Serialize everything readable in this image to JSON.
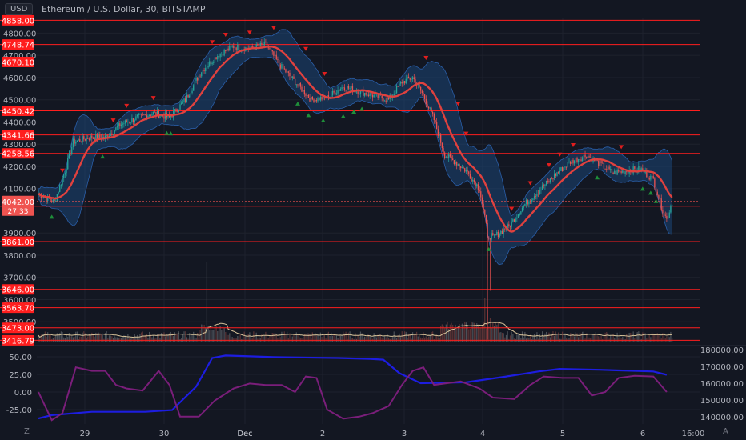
{
  "header": {
    "currency": "USD",
    "title": "Ethereum / U.S. Dollar, 30, BITSTAMP"
  },
  "corners": {
    "left": "Z",
    "right": "A"
  },
  "colors": {
    "background": "#131722",
    "grid": "#1e222d",
    "up": "#26a69a",
    "down": "#ef5350",
    "level_line": "#ff1e1e",
    "basis": "#e0413e",
    "band_fill": "#1d4f8a",
    "volume_ma": "#d9c49a",
    "osc_purple": "#7a1e7a",
    "osc_blue": "#1d1de0",
    "up_marker": "#1f8f3a",
    "down_marker": "#e01e1e"
  },
  "chart_data": {
    "type": "candlestick",
    "symbol": "ETH/USD",
    "interval": "30",
    "exchange": "BITSTAMP",
    "x_ticks": [
      "29",
      "30",
      "Dec",
      "2",
      "3",
      "4",
      "5",
      "6",
      "16:00"
    ],
    "y_ticks": [
      4800,
      4700,
      4600,
      4500,
      4400,
      4300,
      4200,
      4100,
      3900,
      3800,
      3700,
      3600,
      3500
    ],
    "y_range": [
      3400,
      4870
    ],
    "price_levels": [
      4858.0,
      4748.74,
      4670.1,
      4450.42,
      4341.66,
      4258.56,
      4020.4,
      3861.0,
      3646.0,
      3563.7,
      3473.0,
      3416.79
    ],
    "last_price": 4042.0,
    "last_price_countdown": "27:33",
    "close_path": [
      [
        0,
        4075
      ],
      [
        12,
        4040
      ],
      [
        20,
        4180
      ],
      [
        26,
        4310
      ],
      [
        38,
        4330
      ],
      [
        50,
        4330
      ],
      [
        62,
        4390
      ],
      [
        74,
        4420
      ],
      [
        86,
        4440
      ],
      [
        98,
        4420
      ],
      [
        110,
        4500
      ],
      [
        122,
        4630
      ],
      [
        134,
        4700
      ],
      [
        146,
        4740
      ],
      [
        158,
        4730
      ],
      [
        170,
        4750
      ],
      [
        180,
        4660
      ],
      [
        192,
        4580
      ],
      [
        204,
        4500
      ],
      [
        216,
        4510
      ],
      [
        228,
        4560
      ],
      [
        238,
        4540
      ],
      [
        250,
        4520
      ],
      [
        262,
        4500
      ],
      [
        272,
        4580
      ],
      [
        280,
        4600
      ],
      [
        288,
        4520
      ],
      [
        296,
        4410
      ],
      [
        304,
        4250
      ],
      [
        312,
        4220
      ],
      [
        320,
        4180
      ],
      [
        330,
        4100
      ],
      [
        336,
        3900
      ],
      [
        340,
        3880
      ],
      [
        352,
        3930
      ],
      [
        364,
        4030
      ],
      [
        376,
        4100
      ],
      [
        388,
        4170
      ],
      [
        398,
        4220
      ],
      [
        410,
        4250
      ],
      [
        420,
        4210
      ],
      [
        430,
        4170
      ],
      [
        440,
        4180
      ],
      [
        450,
        4190
      ],
      [
        460,
        4140
      ],
      [
        466,
        4020
      ],
      [
        470,
        3960
      ],
      [
        474,
        4040
      ]
    ],
    "oscillator": {
      "y_ticks": [
        50.0,
        25.0,
        0.0,
        -25.0
      ],
      "right_ticks": [
        180000.0,
        170000.0,
        160000.0,
        150000.0,
        140000.0
      ],
      "purple": [
        [
          0,
          0
        ],
        [
          10,
          -40
        ],
        [
          18,
          -30
        ],
        [
          28,
          35
        ],
        [
          40,
          30
        ],
        [
          50,
          30
        ],
        [
          58,
          10
        ],
        [
          66,
          5
        ],
        [
          78,
          2
        ],
        [
          90,
          30
        ],
        [
          98,
          10
        ],
        [
          106,
          -35
        ],
        [
          120,
          -35
        ],
        [
          132,
          -12
        ],
        [
          146,
          5
        ],
        [
          158,
          12
        ],
        [
          170,
          10
        ],
        [
          182,
          10
        ],
        [
          192,
          0
        ],
        [
          200,
          22
        ],
        [
          208,
          20
        ],
        [
          216,
          -25
        ],
        [
          228,
          -38
        ],
        [
          240,
          -35
        ],
        [
          250,
          -30
        ],
        [
          262,
          -20
        ],
        [
          272,
          10
        ],
        [
          280,
          30
        ],
        [
          288,
          35
        ],
        [
          296,
          10
        ],
        [
          304,
          12
        ],
        [
          316,
          15
        ],
        [
          330,
          5
        ],
        [
          340,
          -8
        ],
        [
          356,
          -10
        ],
        [
          368,
          10
        ],
        [
          378,
          22
        ],
        [
          392,
          20
        ],
        [
          404,
          20
        ],
        [
          414,
          -5
        ],
        [
          424,
          0
        ],
        [
          434,
          20
        ],
        [
          446,
          23
        ],
        [
          460,
          22
        ],
        [
          470,
          0
        ]
      ],
      "blue": [
        [
          0,
          139000
        ],
        [
          10,
          141000
        ],
        [
          40,
          143000
        ],
        [
          80,
          143000
        ],
        [
          100,
          144000
        ],
        [
          118,
          158000
        ],
        [
          130,
          175000
        ],
        [
          140,
          176500
        ],
        [
          176,
          175500
        ],
        [
          224,
          175000
        ],
        [
          248,
          174500
        ],
        [
          258,
          174000
        ],
        [
          270,
          166000
        ],
        [
          286,
          160000
        ],
        [
          320,
          160500
        ],
        [
          350,
          164000
        ],
        [
          374,
          167000
        ],
        [
          390,
          168500
        ],
        [
          420,
          168000
        ],
        [
          460,
          167000
        ],
        [
          470,
          165000
        ]
      ]
    }
  }
}
